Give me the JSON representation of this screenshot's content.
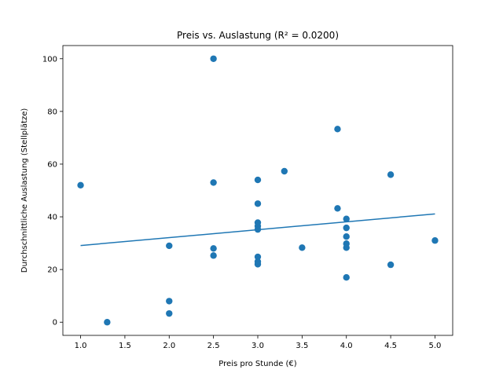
{
  "chart_data": {
    "type": "scatter",
    "title": "Preis vs. Auslastung (R² = 0.0200)",
    "xlabel": "Preis pro Stunde (€)",
    "ylabel": "Durchschnittliche Auslastung (Stellplätze)",
    "xlim": [
      0.8,
      5.2
    ],
    "ylim": [
      -5,
      105
    ],
    "xticks": [
      1.0,
      1.5,
      2.0,
      2.5,
      3.0,
      3.5,
      4.0,
      4.5,
      5.0
    ],
    "xtick_labels": [
      "1.0",
      "1.5",
      "2.0",
      "2.5",
      "3.0",
      "3.5",
      "4.0",
      "4.5",
      "5.0"
    ],
    "yticks": [
      0,
      20,
      40,
      60,
      80,
      100
    ],
    "ytick_labels": [
      "0",
      "20",
      "40",
      "60",
      "80",
      "100"
    ],
    "grid": false,
    "colors": {
      "points": "#1f77b4",
      "trendline": "#1f77b4"
    },
    "points": [
      {
        "x": 1.0,
        "y": 52
      },
      {
        "x": 1.3,
        "y": 0
      },
      {
        "x": 2.0,
        "y": 29
      },
      {
        "x": 2.0,
        "y": 8
      },
      {
        "x": 2.0,
        "y": 3.3
      },
      {
        "x": 2.5,
        "y": 100
      },
      {
        "x": 2.5,
        "y": 53
      },
      {
        "x": 2.5,
        "y": 28
      },
      {
        "x": 2.5,
        "y": 25.3
      },
      {
        "x": 3.0,
        "y": 54
      },
      {
        "x": 3.0,
        "y": 45
      },
      {
        "x": 3.0,
        "y": 37.8
      },
      {
        "x": 3.0,
        "y": 36.5
      },
      {
        "x": 3.0,
        "y": 35.2
      },
      {
        "x": 3.0,
        "y": 24.8
      },
      {
        "x": 3.0,
        "y": 23
      },
      {
        "x": 3.0,
        "y": 22
      },
      {
        "x": 3.3,
        "y": 57.3
      },
      {
        "x": 3.5,
        "y": 28.3
      },
      {
        "x": 3.9,
        "y": 73.3
      },
      {
        "x": 3.9,
        "y": 43.2
      },
      {
        "x": 4.0,
        "y": 39.2
      },
      {
        "x": 4.0,
        "y": 35.8
      },
      {
        "x": 4.0,
        "y": 32.5
      },
      {
        "x": 4.0,
        "y": 29.8
      },
      {
        "x": 4.0,
        "y": 28.3
      },
      {
        "x": 4.0,
        "y": 17
      },
      {
        "x": 4.5,
        "y": 56
      },
      {
        "x": 4.5,
        "y": 21.8
      },
      {
        "x": 5.0,
        "y": 31
      }
    ],
    "trendline": {
      "x": [
        1.0,
        5.0
      ],
      "y": [
        29.1,
        41.1
      ]
    }
  }
}
